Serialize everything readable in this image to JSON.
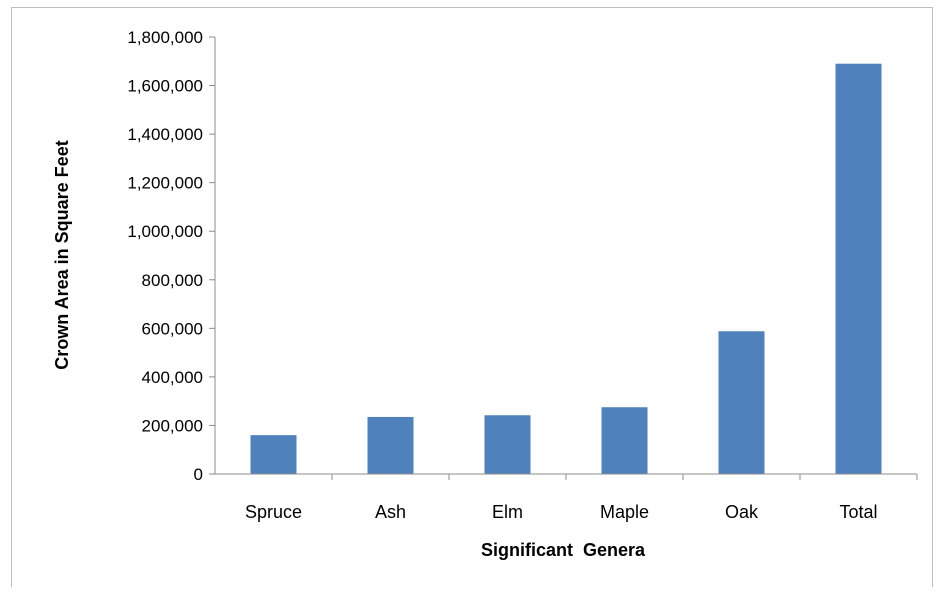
{
  "chart_data": {
    "type": "bar",
    "categories": [
      "Spruce",
      "Ash",
      "Elm",
      "Maple",
      "Oak",
      "Total"
    ],
    "values": [
      160000,
      235000,
      242000,
      275000,
      588000,
      1690000
    ],
    "xlabel": "Significant  Genera",
    "ylabel": "Crown Area in Square Feet",
    "ylim": [
      0,
      1800000
    ],
    "yticks": [
      0,
      200000,
      400000,
      600000,
      800000,
      1000000,
      1200000,
      1400000,
      1600000,
      1800000
    ],
    "ytick_labels": [
      "0",
      "200,000",
      "400,000",
      "600,000",
      "800,000",
      "1,000,000",
      "1,200,000",
      "1,400,000",
      "1,600,000",
      "1,800,000"
    ],
    "grid": false,
    "legend": "none",
    "colors": {
      "bar": "#4f81bd",
      "axis": "#8c8c8c"
    }
  }
}
